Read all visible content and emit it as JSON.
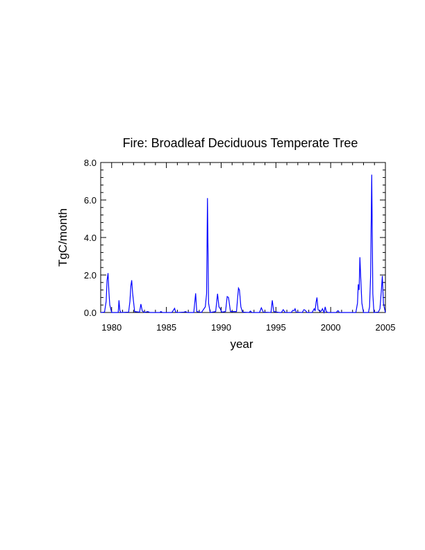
{
  "chart_data": {
    "type": "line",
    "title": "Fire: Broadleaf Deciduous Temperate Tree",
    "xlabel": "year",
    "ylabel": "TgC/month",
    "xlim": [
      1979,
      2005
    ],
    "ylim": [
      0,
      8
    ],
    "x_ticks": [
      1980,
      1985,
      1990,
      1995,
      2000,
      2005
    ],
    "x_tick_labels": [
      "1980",
      "1985",
      "1990",
      "1995",
      "2000",
      "2005"
    ],
    "y_ticks": [
      0,
      2,
      4,
      6,
      8
    ],
    "y_tick_labels": [
      "0.0",
      "2.0",
      "4.0",
      "6.0",
      "8.0"
    ],
    "grid": false,
    "series": [
      {
        "color": "#0000ff",
        "x": [
          1979.0,
          1979.35,
          1979.5,
          1979.58,
          1979.67,
          1979.75,
          1979.83,
          1980.0,
          1980.6,
          1980.67,
          1980.75,
          1980.85,
          1981.55,
          1981.67,
          1981.75,
          1981.83,
          1981.92,
          1982.1,
          1982.55,
          1982.67,
          1982.8,
          1983.0,
          1983.3,
          1983.5,
          1984.4,
          1984.5,
          1984.65,
          1985.5,
          1985.75,
          1985.85,
          1986.0,
          1986.6,
          1986.75,
          1986.9,
          1987.5,
          1987.67,
          1987.77,
          1988.2,
          1988.55,
          1988.67,
          1988.75,
          1988.85,
          1989.0,
          1989.5,
          1989.67,
          1989.8,
          1989.92,
          1990.05,
          1990.4,
          1990.55,
          1990.67,
          1990.85,
          1991.4,
          1991.58,
          1991.67,
          1991.8,
          1991.95,
          1992.55,
          1992.67,
          1992.8,
          1993.5,
          1993.67,
          1993.85,
          1994.55,
          1994.67,
          1994.8,
          1995.3,
          1995.5,
          1995.67,
          1995.85,
          1996.4,
          1996.55,
          1996.67,
          1996.75,
          1996.85,
          1997.4,
          1997.55,
          1997.67,
          1997.85,
          1998.3,
          1998.5,
          1998.58,
          1998.67,
          1998.75,
          1998.85,
          1999.05,
          1999.17,
          1999.25,
          1999.4,
          1999.5,
          1999.6,
          1999.75,
          2000.5,
          2000.67,
          2000.8,
          2002.3,
          2002.45,
          2002.52,
          2002.6,
          2002.67,
          2002.75,
          2002.85,
          2003.0,
          2003.45,
          2003.55,
          2003.65,
          2003.75,
          2003.85,
          2003.95,
          2004.35,
          2004.5,
          2004.62,
          2004.72,
          2004.82,
          2004.92,
          2005.0
        ],
        "y": [
          0.0,
          0.02,
          0.6,
          1.7,
          2.1,
          1.1,
          0.4,
          0.0,
          0.0,
          0.65,
          0.1,
          0.0,
          0.02,
          0.6,
          1.4,
          1.72,
          1.0,
          0.05,
          0.02,
          0.45,
          0.08,
          0.0,
          0.05,
          0.0,
          0.0,
          0.05,
          0.0,
          0.0,
          0.22,
          0.02,
          0.0,
          0.02,
          0.05,
          0.0,
          0.0,
          1.02,
          0.05,
          0.0,
          0.3,
          1.0,
          6.1,
          0.5,
          0.0,
          0.05,
          1.0,
          0.3,
          0.2,
          0.02,
          0.05,
          0.85,
          0.8,
          0.05,
          0.05,
          1.3,
          1.2,
          0.3,
          0.02,
          0.0,
          0.08,
          0.0,
          0.0,
          0.25,
          0.02,
          0.0,
          0.65,
          0.05,
          0.0,
          0.0,
          0.15,
          0.0,
          0.0,
          0.12,
          0.1,
          0.2,
          0.02,
          0.0,
          0.15,
          0.12,
          0.0,
          0.0,
          0.2,
          0.08,
          0.55,
          0.8,
          0.15,
          0.05,
          0.1,
          0.2,
          0.0,
          0.3,
          0.05,
          0.0,
          0.0,
          0.1,
          0.0,
          0.0,
          0.5,
          1.5,
          1.2,
          2.95,
          1.8,
          0.5,
          0.0,
          0.0,
          0.3,
          2.0,
          7.35,
          1.0,
          0.0,
          0.02,
          0.2,
          1.1,
          1.95,
          0.5,
          0.2,
          0.0
        ]
      }
    ]
  }
}
